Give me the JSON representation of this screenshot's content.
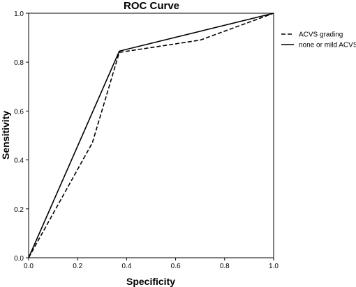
{
  "chart_data": {
    "type": "line",
    "title": "ROC Curve",
    "xlabel": "Specificity",
    "ylabel": "Sensitivity",
    "xlim": [
      0.0,
      1.0
    ],
    "ylim": [
      0.0,
      1.0
    ],
    "xticks": [
      "0.0",
      "0.2",
      "0.4",
      "0.6",
      "0.8",
      "1.0"
    ],
    "yticks": [
      "0.0",
      "0.2",
      "0.4",
      "0.6",
      "0.8",
      "1.0"
    ],
    "grid": false,
    "legend_position": "right",
    "series": [
      {
        "name": "ACVS grading",
        "line_style": "dashed",
        "color": "#000000",
        "points": [
          [
            0.0,
            0.0
          ],
          [
            0.26,
            0.47
          ],
          [
            0.37,
            0.84
          ],
          [
            0.7,
            0.89
          ],
          [
            1.0,
            1.0
          ]
        ]
      },
      {
        "name": "none or mild ACVS",
        "line_style": "solid",
        "color": "#000000",
        "points": [
          [
            0.0,
            0.0
          ],
          [
            0.37,
            0.845
          ],
          [
            1.0,
            1.0
          ]
        ]
      }
    ]
  }
}
